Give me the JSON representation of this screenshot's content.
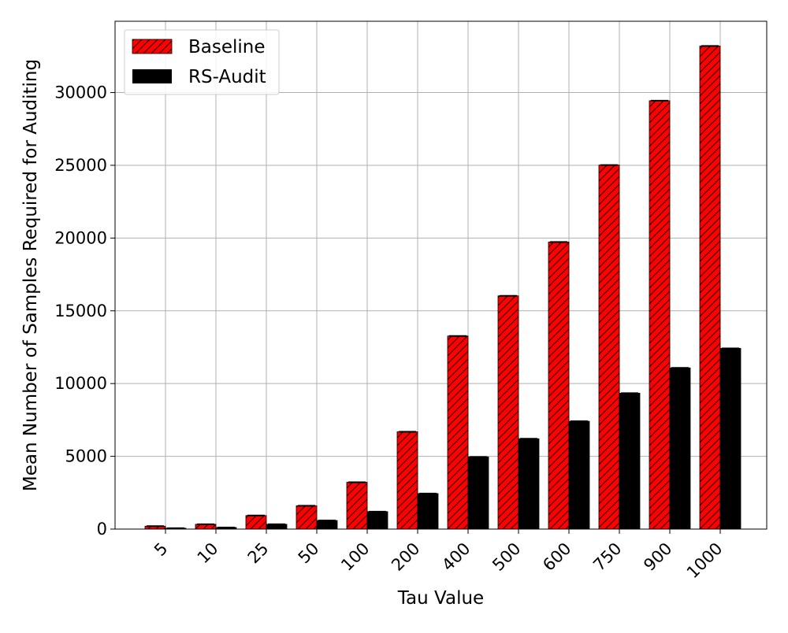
{
  "chart_data": {
    "type": "bar",
    "xlabel": "Tau Value",
    "ylabel": "Mean Number of Samples Required for Auditing",
    "categories": [
      "5",
      "10",
      "25",
      "50",
      "100",
      "200",
      "400",
      "500",
      "600",
      "750",
      "900",
      "1000"
    ],
    "series": [
      {
        "name": "Baseline",
        "color": "#ff0000",
        "hatch": "diagonal",
        "values": [
          200,
          330,
          930,
          1600,
          3220,
          6690,
          13270,
          16030,
          19730,
          25020,
          29440,
          33200
        ]
      },
      {
        "name": "RS-Audit",
        "color": "#000000",
        "hatch": "none",
        "values": [
          60,
          110,
          330,
          590,
          1200,
          2440,
          4960,
          6210,
          7410,
          9340,
          11080,
          12420
        ]
      }
    ],
    "ylim": [
      0,
      34900
    ],
    "yticks": [
      0,
      5000,
      10000,
      15000,
      20000,
      25000,
      30000
    ],
    "grid": true,
    "legend_position": "top-left"
  }
}
